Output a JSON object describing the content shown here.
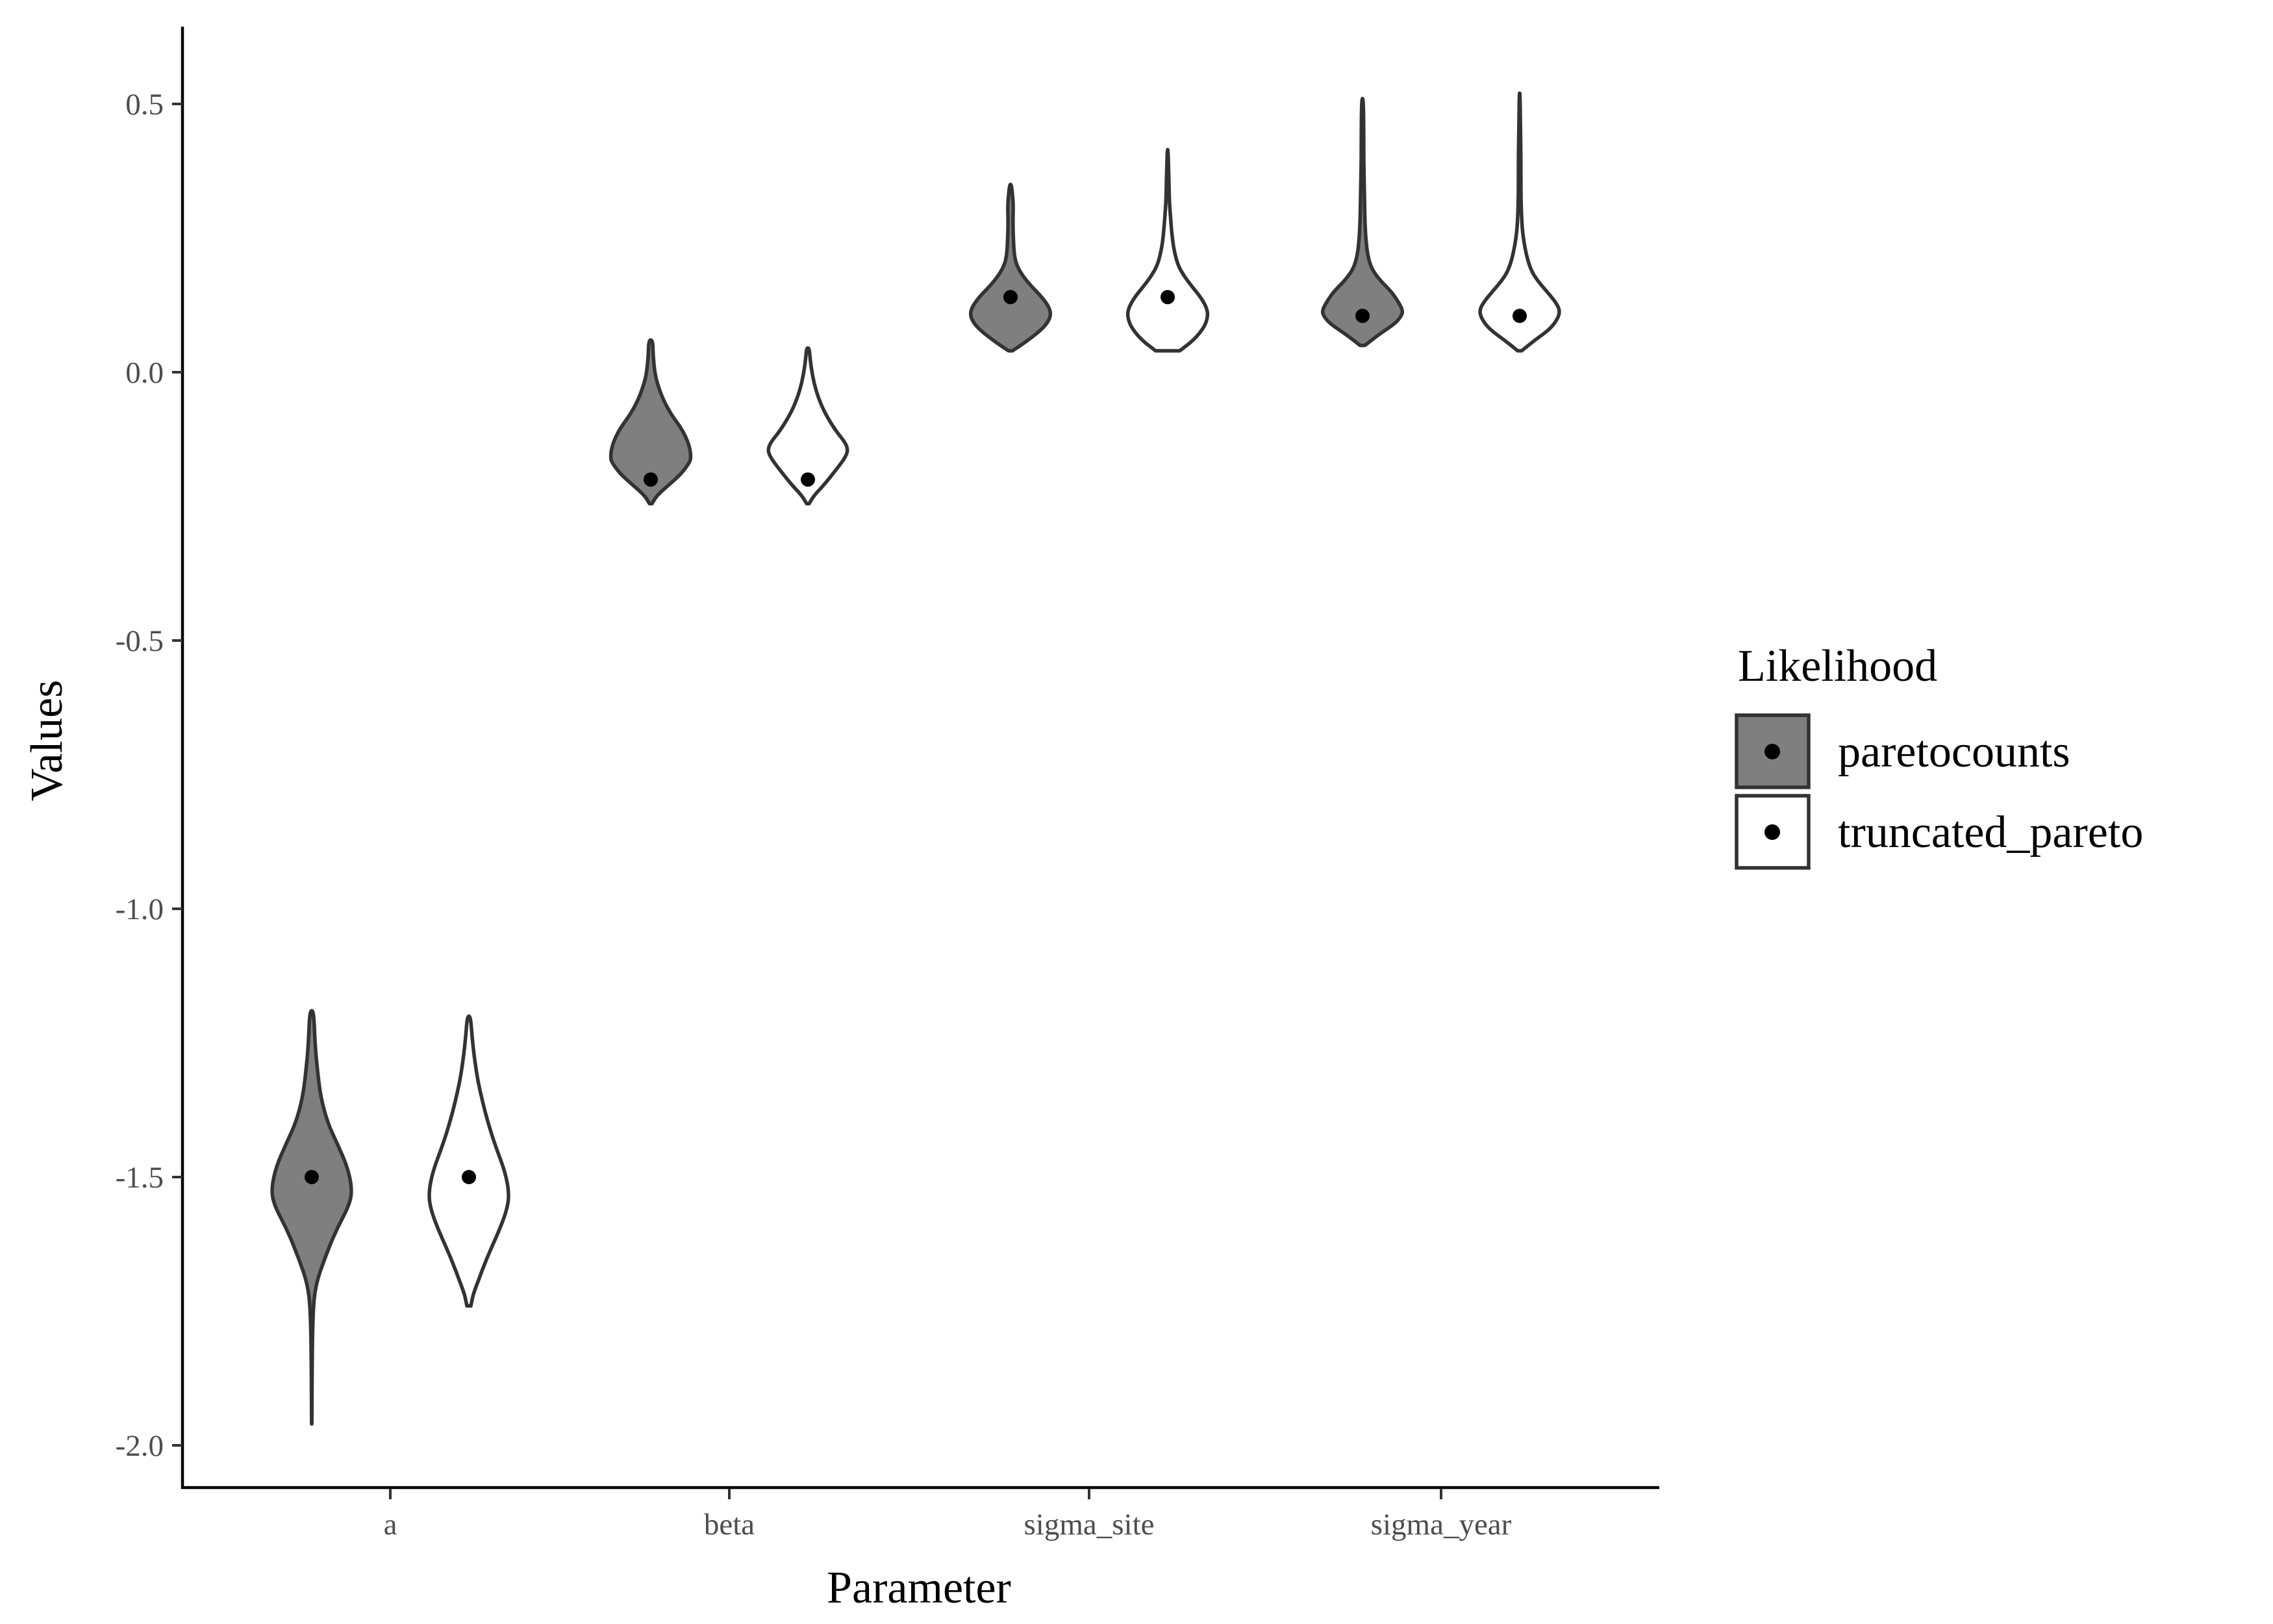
{
  "chart_data": {
    "type": "violin",
    "xlabel": "Parameter",
    "ylabel": "Values",
    "ylim": [
      -2.08,
      0.64
    ],
    "yticks": [
      0.5,
      0.0,
      -0.5,
      -1.0,
      -1.5,
      -2.0
    ],
    "ytick_labels": [
      "0.5",
      "0.0",
      "-0.5",
      "-1.0",
      "-1.5",
      "-2.0"
    ],
    "categories": [
      "a",
      "beta",
      "sigma_site",
      "sigma_year"
    ],
    "grid": false,
    "legend": {
      "title": "Likelihood",
      "placement": "right",
      "entries": [
        "paretocounts",
        "truncated_pareto"
      ]
    },
    "series": [
      {
        "name": "paretocounts",
        "color": "#7f7f7f",
        "violins": [
          {
            "category": "a",
            "min": -1.96,
            "max": -1.19,
            "point": -1.5,
            "profile": [
              [
                -1.96,
                0.003
              ],
              [
                -1.85,
                0.01
              ],
              [
                -1.75,
                0.03
              ],
              [
                -1.7,
                0.1
              ],
              [
                -1.65,
                0.33
              ],
              [
                -1.6,
                0.6
              ],
              [
                -1.55,
                0.95
              ],
              [
                -1.52,
                1.0
              ],
              [
                -1.48,
                0.88
              ],
              [
                -1.44,
                0.65
              ],
              [
                -1.4,
                0.4
              ],
              [
                -1.35,
                0.22
              ],
              [
                -1.3,
                0.14
              ],
              [
                -1.25,
                0.08
              ],
              [
                -1.19,
                0.05
              ]
            ]
          },
          {
            "category": "beta",
            "min": -0.245,
            "max": 0.06,
            "point": -0.2,
            "profile": [
              [
                -0.245,
                0.03
              ],
              [
                -0.23,
                0.15
              ],
              [
                -0.21,
                0.45
              ],
              [
                -0.19,
                0.75
              ],
              [
                -0.17,
                0.95
              ],
              [
                -0.16,
                1.0
              ],
              [
                -0.14,
                0.97
              ],
              [
                -0.12,
                0.87
              ],
              [
                -0.1,
                0.72
              ],
              [
                -0.08,
                0.52
              ],
              [
                -0.05,
                0.3
              ],
              [
                -0.02,
                0.16
              ],
              [
                0.0,
                0.1
              ],
              [
                0.03,
                0.06
              ],
              [
                0.06,
                0.05
              ]
            ]
          },
          {
            "category": "sigma_site",
            "min": 0.04,
            "max": 0.35,
            "point": 0.14,
            "profile": [
              [
                0.04,
                0.05
              ],
              [
                0.055,
                0.35
              ],
              [
                0.075,
                0.7
              ],
              [
                0.09,
                0.9
              ],
              [
                0.105,
                1.0
              ],
              [
                0.12,
                0.97
              ],
              [
                0.14,
                0.78
              ],
              [
                0.16,
                0.52
              ],
              [
                0.18,
                0.3
              ],
              [
                0.2,
                0.15
              ],
              [
                0.22,
                0.09
              ],
              [
                0.25,
                0.07
              ],
              [
                0.28,
                0.06
              ],
              [
                0.31,
                0.07
              ],
              [
                0.33,
                0.05
              ],
              [
                0.35,
                0.02
              ]
            ]
          },
          {
            "category": "sigma_year",
            "min": 0.05,
            "max": 0.51,
            "point": 0.105,
            "profile": [
              [
                0.05,
                0.06
              ],
              [
                0.07,
                0.4
              ],
              [
                0.09,
                0.8
              ],
              [
                0.105,
                0.97
              ],
              [
                0.115,
                1.0
              ],
              [
                0.13,
                0.9
              ],
              [
                0.15,
                0.72
              ],
              [
                0.17,
                0.45
              ],
              [
                0.19,
                0.25
              ],
              [
                0.21,
                0.15
              ],
              [
                0.24,
                0.09
              ],
              [
                0.28,
                0.06
              ],
              [
                0.32,
                0.05
              ],
              [
                0.36,
                0.04
              ],
              [
                0.4,
                0.03
              ],
              [
                0.45,
                0.03
              ],
              [
                0.51,
                0.02
              ]
            ]
          }
        ]
      },
      {
        "name": "truncated_pareto",
        "color": "#ffffff",
        "violins": [
          {
            "category": "a",
            "min": -1.74,
            "max": -1.2,
            "point": -1.5,
            "profile": [
              [
                -1.74,
                0.05
              ],
              [
                -1.72,
                0.1
              ],
              [
                -1.7,
                0.2
              ],
              [
                -1.65,
                0.45
              ],
              [
                -1.6,
                0.75
              ],
              [
                -1.56,
                0.95
              ],
              [
                -1.53,
                1.0
              ],
              [
                -1.49,
                0.9
              ],
              [
                -1.44,
                0.65
              ],
              [
                -1.4,
                0.48
              ],
              [
                -1.36,
                0.34
              ],
              [
                -1.32,
                0.22
              ],
              [
                -1.28,
                0.14
              ],
              [
                -1.24,
                0.08
              ],
              [
                -1.2,
                0.04
              ]
            ]
          },
          {
            "category": "beta",
            "min": -0.245,
            "max": 0.045,
            "point": -0.2,
            "profile": [
              [
                -0.245,
                0.03
              ],
              [
                -0.23,
                0.15
              ],
              [
                -0.21,
                0.4
              ],
              [
                -0.18,
                0.72
              ],
              [
                -0.16,
                0.92
              ],
              [
                -0.145,
                1.0
              ],
              [
                -0.13,
                0.92
              ],
              [
                -0.11,
                0.7
              ],
              [
                -0.08,
                0.45
              ],
              [
                -0.05,
                0.27
              ],
              [
                -0.02,
                0.15
              ],
              [
                0.01,
                0.08
              ],
              [
                0.03,
                0.05
              ],
              [
                0.045,
                0.03
              ]
            ]
          },
          {
            "category": "sigma_site",
            "min": 0.04,
            "max": 0.415,
            "point": 0.14,
            "profile": [
              [
                0.04,
                0.3
              ],
              [
                0.06,
                0.65
              ],
              [
                0.085,
                0.92
              ],
              [
                0.105,
                1.0
              ],
              [
                0.12,
                0.97
              ],
              [
                0.14,
                0.82
              ],
              [
                0.16,
                0.6
              ],
              [
                0.18,
                0.4
              ],
              [
                0.2,
                0.25
              ],
              [
                0.23,
                0.15
              ],
              [
                0.26,
                0.1
              ],
              [
                0.29,
                0.07
              ],
              [
                0.32,
                0.04
              ],
              [
                0.36,
                0.03
              ],
              [
                0.415,
                0.01
              ]
            ]
          },
          {
            "category": "sigma_year",
            "min": 0.04,
            "max": 0.52,
            "point": 0.105,
            "profile": [
              [
                0.04,
                0.05
              ],
              [
                0.06,
                0.38
              ],
              [
                0.08,
                0.75
              ],
              [
                0.1,
                0.95
              ],
              [
                0.115,
                1.0
              ],
              [
                0.13,
                0.9
              ],
              [
                0.15,
                0.68
              ],
              [
                0.17,
                0.45
              ],
              [
                0.19,
                0.28
              ],
              [
                0.22,
                0.16
              ],
              [
                0.26,
                0.07
              ],
              [
                0.3,
                0.04
              ],
              [
                0.34,
                0.03
              ],
              [
                0.4,
                0.03
              ],
              [
                0.45,
                0.02
              ],
              [
                0.52,
                0.01
              ]
            ]
          }
        ]
      }
    ]
  }
}
